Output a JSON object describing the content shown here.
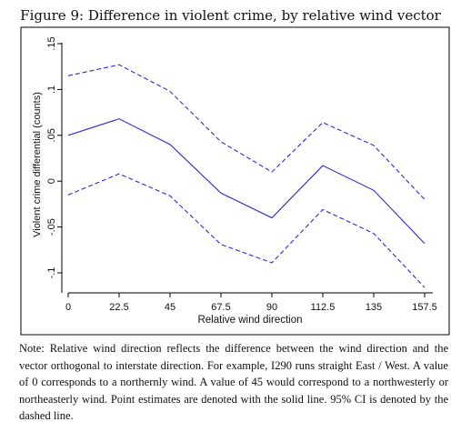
{
  "figure_title": "Figure 9: Difference in violent crime, by relative wind vector",
  "note_text": "Note: Relative wind direction reflects the difference between the wind direction and the vector orthogonal to interstate direction. For example, I290 runs straight East / West. A value of 0 corresponds to a northernly wind. A value of 45 would correspond to a northwesterly or northeasterly wind. Point estimates are denoted with the solid line. 95% CI is denoted by the dashed line.",
  "colors": {
    "line": "#2b2bd4",
    "axis": "#000000",
    "frame": "#000000"
  },
  "chart_data": {
    "type": "line",
    "xlabel": "Relative wind direction",
    "ylabel": "Violent crime differential (counts)",
    "x": [
      0,
      22.5,
      45,
      67.5,
      90,
      112.5,
      135,
      157.5
    ],
    "x_tick_labels": [
      "0",
      "22.5",
      "45",
      "67.5",
      "90",
      "112.5",
      "135",
      "157.5"
    ],
    "y_ticks": [
      -0.1,
      -0.05,
      0,
      0.05,
      0.1,
      0.15
    ],
    "y_tick_labels": [
      "-.1",
      "-.05",
      "0",
      ".05",
      ".1",
      ".15"
    ],
    "xlim": [
      0,
      157.5
    ],
    "ylim": [
      -0.1,
      0.15
    ],
    "grid": false,
    "series": [
      {
        "style": "solid",
        "values": [
          0.05,
          0.068,
          0.04,
          -0.013,
          -0.04,
          0.017,
          -0.01,
          -0.068
        ]
      },
      {
        "style": "dashed",
        "values": [
          0.115,
          0.127,
          0.098,
          0.043,
          0.01,
          0.064,
          0.039,
          -0.02
        ]
      },
      {
        "style": "dashed",
        "values": [
          -0.015,
          0.008,
          -0.016,
          -0.069,
          -0.089,
          -0.031,
          -0.057,
          -0.116
        ]
      }
    ]
  }
}
